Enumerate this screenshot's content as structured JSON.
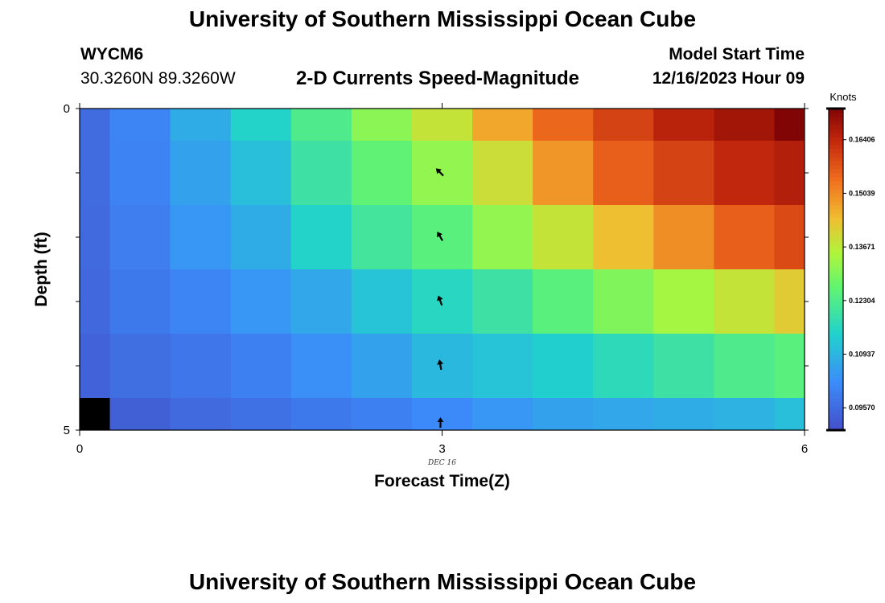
{
  "header": {
    "title": "University of Southern Mississippi Ocean Cube",
    "station_id": "WYCM6",
    "coords": "30.3260N  89.3260W",
    "subtitle": "2-D Currents Speed-Magnitude",
    "model_label": "Model Start Time",
    "model_time": "12/16/2023 Hour 09"
  },
  "footer": {
    "title": "University of Southern Mississippi Ocean Cube"
  },
  "chart_data": {
    "type": "heatmap",
    "title": "2-D Currents Speed-Magnitude",
    "xlabel": "Forecast Time(Z)",
    "ylabel": "Depth (ft)",
    "x_date_label": "DEC 16",
    "xlim": [
      0,
      6
    ],
    "ylim": [
      0,
      5
    ],
    "x_ticks": [
      "0",
      "3",
      "6"
    ],
    "y_ticks": [
      "0",
      "5"
    ],
    "colorbar": {
      "label": "Knots",
      "range": [
        0.09,
        0.172
      ],
      "ticks": [
        "0.09570",
        "0.10937",
        "0.12304",
        "0.13671",
        "0.15039",
        "0.16406"
      ]
    },
    "x_edges": [
      0,
      0.25,
      0.75,
      1.25,
      1.75,
      2.25,
      2.75,
      3.25,
      3.75,
      4.25,
      4.75,
      5.25,
      5.75,
      6
    ],
    "depth_edges": [
      0,
      0.5,
      1.5,
      2.5,
      3.5,
      4.5,
      5
    ],
    "speed_knots": [
      [
        0.096,
        0.101,
        0.108,
        0.115,
        0.123,
        0.131,
        0.138,
        0.147,
        0.155,
        0.16,
        0.165,
        0.168,
        0.172
      ],
      [
        0.096,
        0.1005,
        0.106,
        0.111,
        0.12,
        0.126,
        0.132,
        0.139,
        0.149,
        0.156,
        0.16,
        0.164,
        0.166
      ],
      [
        0.0955,
        0.0995,
        0.104,
        0.108,
        0.115,
        0.121,
        0.125,
        0.132,
        0.138,
        0.144,
        0.15,
        0.156,
        0.159
      ],
      [
        0.0952,
        0.0985,
        0.101,
        0.104,
        0.107,
        0.112,
        0.116,
        0.12,
        0.125,
        0.13,
        0.134,
        0.138,
        0.142
      ],
      [
        0.094,
        0.0965,
        0.098,
        0.1,
        0.103,
        0.106,
        0.11,
        0.112,
        0.114,
        0.117,
        0.12,
        0.123,
        0.125
      ],
      [
        null,
        0.0935,
        0.0955,
        0.097,
        0.0985,
        0.1,
        0.102,
        0.104,
        0.106,
        0.107,
        0.108,
        0.109,
        0.111
      ]
    ],
    "arrows": [
      {
        "x": 3,
        "depth": 1.0,
        "direction_deg": 315
      },
      {
        "x": 3,
        "depth": 2.0,
        "direction_deg": 330
      },
      {
        "x": 3,
        "depth": 3.0,
        "direction_deg": 340
      },
      {
        "x": 3,
        "depth": 4.0,
        "direction_deg": 350
      },
      {
        "x": 3,
        "depth": 4.9,
        "direction_deg": 0
      }
    ]
  }
}
